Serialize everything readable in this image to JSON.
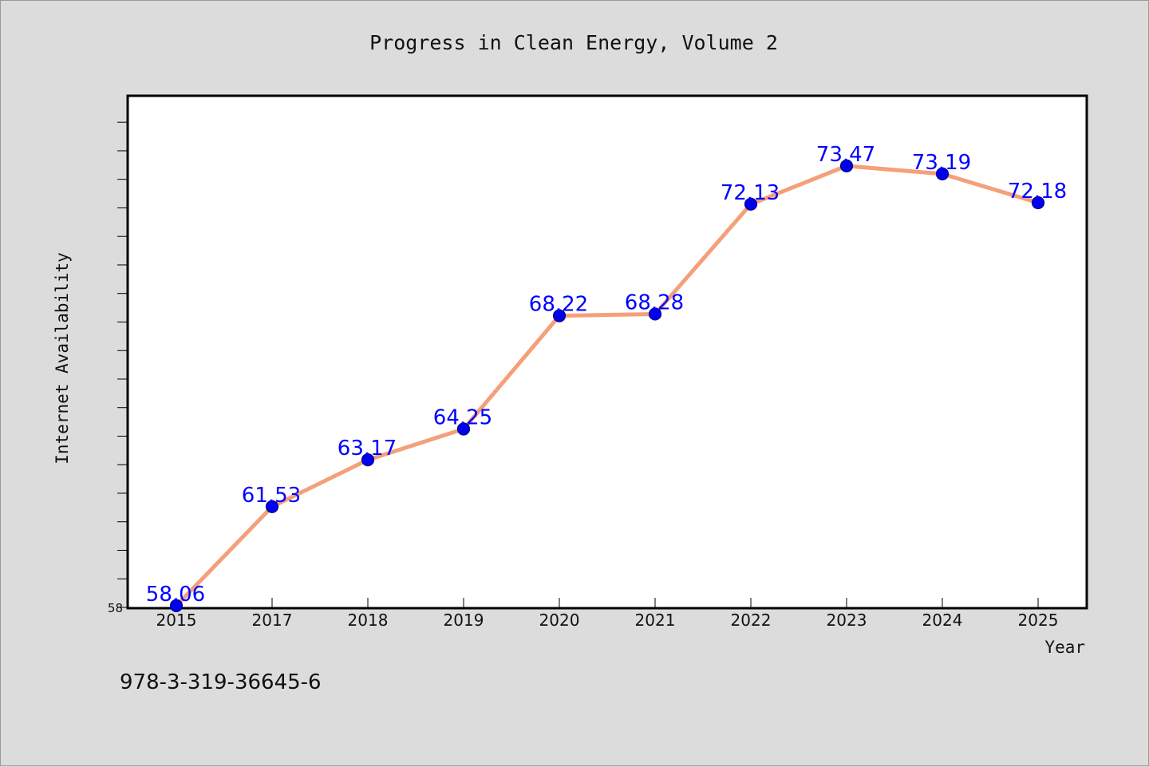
{
  "chart_data": {
    "type": "line",
    "title": "Progress in Clean Energy, Volume 2",
    "xlabel": "Year",
    "ylabel": "Internet Availability",
    "categories": [
      "2015",
      "2017",
      "2018",
      "2019",
      "2020",
      "2021",
      "2022",
      "2023",
      "2024",
      "2025"
    ],
    "series": [
      {
        "values": [
          58.06,
          61.53,
          63.17,
          64.25,
          68.22,
          68.28,
          72.13,
          73.47,
          73.19,
          72.18
        ],
        "value_labels": [
          "58.06",
          "61.53",
          "63.17",
          "64.25",
          "68.22",
          "68.28",
          "72.13",
          "73.47",
          "73.19",
          "72.18"
        ]
      }
    ],
    "ylim": [
      58,
      75.9
    ],
    "y_tick_labels": [
      "58"
    ],
    "y_minor_step": 1,
    "grid": false,
    "legend": "none",
    "colors": {
      "line": "#f4a07a",
      "marker": "#0000ee",
      "marker_edge": "#00008b",
      "value_label": "#0000ff",
      "plot_background": "#ffffff",
      "page_background": "#dcdcdc"
    }
  },
  "footer": {
    "isbn": "978-3-319-36645-6"
  }
}
